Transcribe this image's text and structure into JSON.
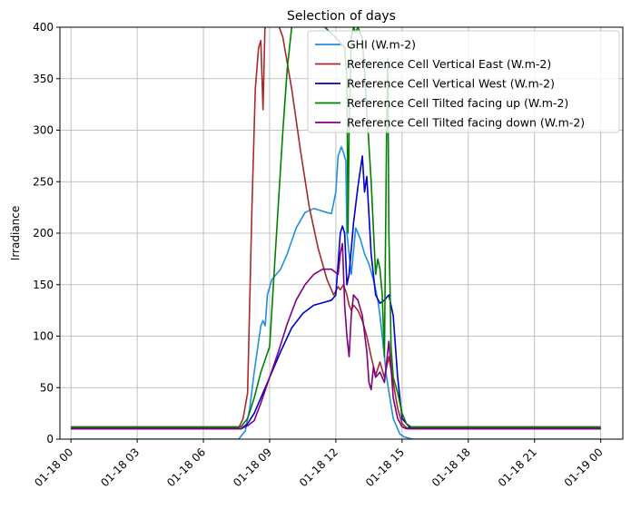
{
  "chart_data": {
    "type": "line",
    "title": "Selection of days",
    "xlabel": "",
    "ylabel": "Irradiance",
    "xlim": [
      -0.5,
      25.0
    ],
    "ylim": [
      0,
      400
    ],
    "x_unit": "hours from 01-18 00:00",
    "x_ticks": [
      {
        "value": 0,
        "label": "01-18 00"
      },
      {
        "value": 3,
        "label": "01-18 03"
      },
      {
        "value": 6,
        "label": "01-18 06"
      },
      {
        "value": 9,
        "label": "01-18 09"
      },
      {
        "value": 12,
        "label": "01-18 12"
      },
      {
        "value": 15,
        "label": "01-18 15"
      },
      {
        "value": 18,
        "label": "01-18 18"
      },
      {
        "value": 21,
        "label": "01-18 21"
      },
      {
        "value": 24,
        "label": "01-19 00"
      }
    ],
    "y_ticks": [
      0,
      50,
      100,
      150,
      200,
      250,
      300,
      350,
      400
    ],
    "grid": true,
    "legend_position": "top-right",
    "series": [
      {
        "name": "GHI (W.m-2)",
        "color": "#1f8fe0",
        "x": [
          0,
          7.6,
          7.9,
          8.1,
          8.3,
          8.5,
          8.6,
          8.7,
          8.8,
          8.9,
          9.1,
          9.5,
          9.8,
          10.2,
          10.6,
          11.0,
          11.3,
          11.6,
          11.8,
          12.0,
          12.1,
          12.25,
          12.35,
          12.45,
          12.5,
          12.7,
          12.9,
          13.1,
          13.3,
          13.5,
          13.7,
          13.9,
          14.0,
          14.1,
          14.3,
          14.6,
          14.9,
          15.1,
          15.5,
          24
        ],
        "y": [
          0,
          0,
          8,
          30,
          65,
          95,
          110,
          115,
          110,
          140,
          155,
          165,
          180,
          205,
          220,
          224,
          222,
          220,
          219,
          240,
          275,
          284,
          278,
          270,
          200,
          160,
          205,
          195,
          180,
          170,
          155,
          135,
          120,
          100,
          60,
          20,
          5,
          2,
          0,
          0
        ]
      },
      {
        "name": "Reference Cell Vertical East (W.m-2)",
        "color": "#a52a2a",
        "x": [
          0,
          7.6,
          7.8,
          8.0,
          8.2,
          8.35,
          8.5,
          8.6,
          8.7,
          8.8,
          8.9,
          9.2,
          9.6,
          10.0,
          10.4,
          10.8,
          11.2,
          11.6,
          11.9,
          12.1,
          12.2,
          12.35,
          12.5,
          12.6,
          12.7,
          12.8,
          13.0,
          13.2,
          13.4,
          13.6,
          13.8,
          14.0,
          14.2,
          14.4,
          14.6,
          14.8,
          15.0,
          15.2,
          24
        ],
        "y": [
          11,
          11,
          20,
          45,
          225,
          340,
          380,
          387,
          320,
          410,
          420,
          415,
          390,
          340,
          280,
          225,
          185,
          155,
          140,
          148,
          145,
          150,
          140,
          130,
          125,
          130,
          125,
          115,
          100,
          80,
          62,
          75,
          60,
          80,
          55,
          30,
          15,
          11,
          11
        ]
      },
      {
        "name": "Reference Cell Vertical West (W.m-2)",
        "color": "#0000cd",
        "x": [
          0,
          7.7,
          8.0,
          8.3,
          8.6,
          9.0,
          9.5,
          10.0,
          10.5,
          11.0,
          11.5,
          11.8,
          12.0,
          12.2,
          12.3,
          12.4,
          12.5,
          12.6,
          12.8,
          13.0,
          13.2,
          13.3,
          13.4,
          13.6,
          13.8,
          14.0,
          14.2,
          14.4,
          14.6,
          14.8,
          15.0,
          15.2,
          15.4,
          24
        ],
        "y": [
          10,
          10,
          15,
          25,
          40,
          60,
          85,
          108,
          122,
          130,
          133,
          135,
          140,
          200,
          207,
          200,
          150,
          160,
          210,
          245,
          275,
          240,
          255,
          180,
          140,
          132,
          135,
          140,
          120,
          60,
          20,
          15,
          10,
          10
        ]
      },
      {
        "name": "Reference Cell Tilted facing up (W.m-2)",
        "color": "#008000",
        "x": [
          0,
          7.7,
          8.0,
          8.3,
          8.6,
          9.0,
          9.2,
          9.4,
          9.6,
          9.8,
          10.0,
          10.2,
          10.5,
          10.8,
          11.0,
          11.5,
          12.0,
          12.2,
          12.4,
          12.5,
          12.55,
          12.6,
          12.7,
          12.8,
          12.9,
          13.0,
          13.2,
          13.4,
          13.6,
          13.8,
          13.9,
          14.0,
          14.1,
          14.2,
          14.3,
          14.35,
          14.4,
          14.45,
          14.5,
          14.6,
          14.8,
          15.0,
          15.2,
          15.4,
          24
        ],
        "y": [
          12,
          12,
          20,
          40,
          65,
          90,
          160,
          230,
          300,
          360,
          400,
          420,
          430,
          420,
          410,
          400,
          390,
          385,
          380,
          350,
          200,
          300,
          390,
          400,
          395,
          400,
          390,
          320,
          250,
          160,
          175,
          165,
          140,
          80,
          300,
          370,
          200,
          150,
          90,
          60,
          45,
          25,
          15,
          12,
          12
        ]
      },
      {
        "name": "Reference Cell Tilted facing down (W.m-2)",
        "color": "#800080",
        "x": [
          0,
          7.7,
          8.0,
          8.3,
          8.6,
          9.0,
          9.4,
          9.8,
          10.2,
          10.6,
          11.0,
          11.4,
          11.8,
          12.1,
          12.2,
          12.3,
          12.4,
          12.5,
          12.6,
          12.7,
          12.8,
          13.0,
          13.2,
          13.4,
          13.5,
          13.6,
          13.7,
          13.8,
          14.0,
          14.2,
          14.4,
          14.5,
          14.6,
          14.8,
          15.0,
          15.2,
          24
        ],
        "y": [
          10,
          10,
          13,
          18,
          35,
          60,
          85,
          112,
          135,
          150,
          160,
          165,
          165,
          160,
          180,
          190,
          130,
          100,
          80,
          120,
          140,
          135,
          120,
          85,
          55,
          48,
          70,
          60,
          65,
          55,
          95,
          70,
          40,
          20,
          12,
          10,
          10
        ]
      }
    ]
  }
}
